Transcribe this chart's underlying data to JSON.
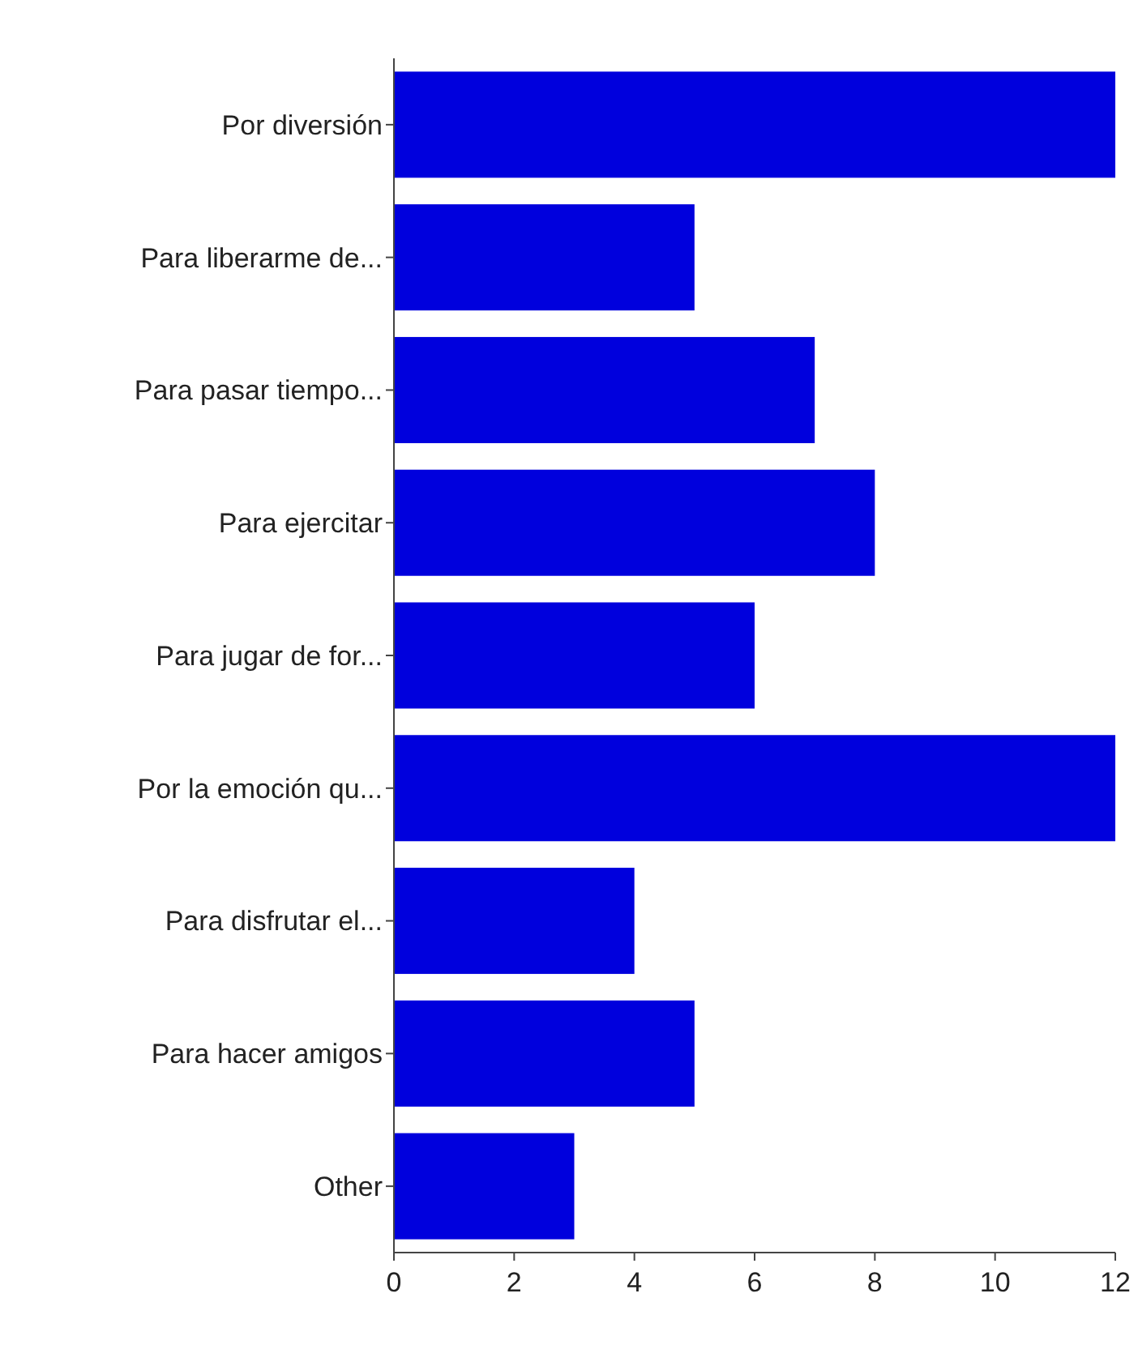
{
  "chart_data": {
    "type": "bar",
    "orientation": "horizontal",
    "categories": [
      "Por diversión",
      "Para liberarme de...",
      "Para pasar tiempo...",
      "Para ejercitar",
      "Para jugar de for...",
      "Por la emoción qu...",
      "Para disfrutar el...",
      "Para hacer amigos",
      "Other"
    ],
    "values": [
      12,
      5,
      7,
      8,
      6,
      12,
      4,
      5,
      3
    ],
    "color": "#0000dd",
    "xlim": [
      0,
      12
    ],
    "xticks": [
      0,
      2,
      4,
      6,
      8,
      10,
      12
    ],
    "grid": false
  }
}
